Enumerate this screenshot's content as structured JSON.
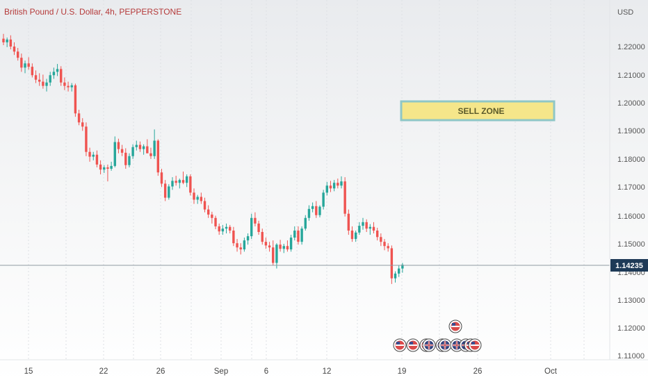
{
  "header": {
    "title": "British Pound / U.S. Dollar, 4h, PEPPERSTONE",
    "currency": "USD"
  },
  "price_axis": {
    "labels": [
      "1.22000",
      "1.21000",
      "1.20000",
      "1.19000",
      "1.18000",
      "1.17000",
      "1.16000",
      "1.15000",
      "1.14000",
      "1.13000",
      "1.12000",
      "1.11000"
    ],
    "current_price": "1.14235"
  },
  "time_axis": {
    "labels": [
      "15",
      "22",
      "26",
      "Sep",
      "6",
      "12",
      "19",
      "26",
      "Oct"
    ]
  },
  "annotations": {
    "sell_zone": "SELL ZONE"
  },
  "colors": {
    "up": "#26a69a",
    "down": "#ef5350",
    "title": "#b53a3a",
    "zone_fill": "#f5e68a",
    "zone_border": "#8fc7c6",
    "price_tag": "#1e3a57"
  },
  "events": {
    "icons": [
      "us-flag-icon",
      "us-flag-icon",
      "us-flag-icon",
      "uk-flag-icon",
      "uk-flag-icon",
      "uk-flag-icon",
      "us-flag-icon",
      "uk-flag-icon",
      "uk-flag-icon",
      "us-flag-icon",
      "us-flag-icon"
    ]
  },
  "chart_data": {
    "type": "candlestick",
    "symbol": "British Pound / U.S. Dollar",
    "interval": "4h",
    "exchange": "PEPPERSTONE",
    "ylim": [
      1.11,
      1.225
    ],
    "x_ticks": [
      "15",
      "22",
      "26",
      "Sep",
      "6",
      "12",
      "19",
      "26",
      "Oct"
    ],
    "current_price": 1.14235,
    "zones": [
      {
        "label": "SELL ZONE",
        "from": 1.1955,
        "to": 1.2005
      }
    ],
    "candles": [
      [
        1.2228,
        1.2245,
        1.2205,
        1.2215
      ],
      [
        1.2215,
        1.2232,
        1.2198,
        1.2225
      ],
      [
        1.2225,
        1.224,
        1.219,
        1.22
      ],
      [
        1.22,
        1.2215,
        1.217,
        1.2182
      ],
      [
        1.2182,
        1.2195,
        1.215,
        1.216
      ],
      [
        1.216,
        1.2175,
        1.211,
        1.2125
      ],
      [
        1.2125,
        1.215,
        1.2105,
        1.214
      ],
      [
        1.214,
        1.2162,
        1.2118,
        1.2128
      ],
      [
        1.2128,
        1.214,
        1.209,
        1.2098
      ],
      [
        1.2098,
        1.2115,
        1.207,
        1.2082
      ],
      [
        1.2082,
        1.2105,
        1.206,
        1.2075
      ],
      [
        1.2075,
        1.21,
        1.205,
        1.206
      ],
      [
        1.206,
        1.2085,
        1.204,
        1.2072
      ],
      [
        1.2072,
        1.211,
        1.206,
        1.2098
      ],
      [
        1.2098,
        1.2125,
        1.2085,
        1.211
      ],
      [
        1.211,
        1.2138,
        1.2095,
        1.212
      ],
      [
        1.212,
        1.213,
        1.206,
        1.2072
      ],
      [
        1.2072,
        1.209,
        1.2045,
        1.206
      ],
      [
        1.206,
        1.2075,
        1.204,
        1.2055
      ],
      [
        1.2055,
        1.207,
        1.204,
        1.2062
      ],
      [
        1.2062,
        1.2068,
        1.195,
        1.1962
      ],
      [
        1.1962,
        1.1975,
        1.192,
        1.193
      ],
      [
        1.193,
        1.1945,
        1.19,
        1.1915
      ],
      [
        1.1915,
        1.193,
        1.181,
        1.1825
      ],
      [
        1.1825,
        1.184,
        1.179,
        1.1808
      ],
      [
        1.1808,
        1.1825,
        1.1795,
        1.1815
      ],
      [
        1.1815,
        1.183,
        1.177,
        1.178
      ],
      [
        1.178,
        1.1795,
        1.1745,
        1.1762
      ],
      [
        1.1762,
        1.1778,
        1.175,
        1.177
      ],
      [
        1.177,
        1.178,
        1.172,
        1.1765
      ],
      [
        1.1765,
        1.179,
        1.1758,
        1.1775
      ],
      [
        1.1775,
        1.188,
        1.177,
        1.186
      ],
      [
        1.186,
        1.1872,
        1.182,
        1.1835
      ],
      [
        1.1835,
        1.185,
        1.181,
        1.1822
      ],
      [
        1.1822,
        1.1838,
        1.1765,
        1.1778
      ],
      [
        1.1778,
        1.182,
        1.177,
        1.181
      ],
      [
        1.181,
        1.1852,
        1.18,
        1.1842
      ],
      [
        1.1842,
        1.1865,
        1.183,
        1.185
      ],
      [
        1.185,
        1.1862,
        1.1825,
        1.1835
      ],
      [
        1.1835,
        1.1852,
        1.1815,
        1.1845
      ],
      [
        1.1845,
        1.187,
        1.183,
        1.182
      ],
      [
        1.182,
        1.184,
        1.18,
        1.181
      ],
      [
        1.181,
        1.1905,
        1.18,
        1.1865
      ],
      [
        1.1865,
        1.187,
        1.174,
        1.1752
      ],
      [
        1.1752,
        1.1765,
        1.17,
        1.1712
      ],
      [
        1.1712,
        1.1725,
        1.165,
        1.1662
      ],
      [
        1.1662,
        1.171,
        1.1655,
        1.1702
      ],
      [
        1.1702,
        1.1735,
        1.169,
        1.1722
      ],
      [
        1.1722,
        1.174,
        1.1705,
        1.1715
      ],
      [
        1.1715,
        1.173,
        1.1695,
        1.1725
      ],
      [
        1.1725,
        1.1755,
        1.171,
        1.1715
      ],
      [
        1.1715,
        1.1745,
        1.17,
        1.1738
      ],
      [
        1.1738,
        1.1745,
        1.167,
        1.168
      ],
      [
        1.168,
        1.1695,
        1.164,
        1.1655
      ],
      [
        1.1655,
        1.1672,
        1.164,
        1.1665
      ],
      [
        1.1665,
        1.168,
        1.164,
        1.165
      ],
      [
        1.165,
        1.1662,
        1.161,
        1.162
      ],
      [
        1.162,
        1.1635,
        1.159,
        1.1602
      ],
      [
        1.1602,
        1.1612,
        1.157,
        1.159
      ],
      [
        1.159,
        1.1598,
        1.155,
        1.156
      ],
      [
        1.156,
        1.157,
        1.153,
        1.1542
      ],
      [
        1.1542,
        1.1565,
        1.153,
        1.1552
      ],
      [
        1.1552,
        1.157,
        1.1535,
        1.1558
      ],
      [
        1.1558,
        1.1565,
        1.1535,
        1.1545
      ],
      [
        1.1545,
        1.1558,
        1.149,
        1.15
      ],
      [
        1.15,
        1.1515,
        1.147,
        1.1485
      ],
      [
        1.1485,
        1.15,
        1.146,
        1.1478
      ],
      [
        1.1478,
        1.152,
        1.147,
        1.151
      ],
      [
        1.151,
        1.1535,
        1.1495,
        1.1525
      ],
      [
        1.1525,
        1.1605,
        1.1515,
        1.159
      ],
      [
        1.159,
        1.161,
        1.156,
        1.157
      ],
      [
        1.157,
        1.158,
        1.153,
        1.154
      ],
      [
        1.154,
        1.1552,
        1.1495,
        1.1505
      ],
      [
        1.1505,
        1.152,
        1.148,
        1.1492
      ],
      [
        1.1492,
        1.1505,
        1.147,
        1.1485
      ],
      [
        1.1485,
        1.151,
        1.142,
        1.143
      ],
      [
        1.143,
        1.15,
        1.141,
        1.1495
      ],
      [
        1.1495,
        1.1512,
        1.147,
        1.148
      ],
      [
        1.148,
        1.1498,
        1.1465,
        1.149
      ],
      [
        1.149,
        1.151,
        1.147,
        1.1478
      ],
      [
        1.1478,
        1.153,
        1.147,
        1.152
      ],
      [
        1.152,
        1.156,
        1.151,
        1.1545
      ],
      [
        1.1545,
        1.156,
        1.1495,
        1.1505
      ],
      [
        1.1505,
        1.156,
        1.1495,
        1.1552
      ],
      [
        1.1552,
        1.16,
        1.1545,
        1.159
      ],
      [
        1.159,
        1.1635,
        1.158,
        1.1622
      ],
      [
        1.1622,
        1.1645,
        1.161,
        1.1632
      ],
      [
        1.1632,
        1.165,
        1.159,
        1.16
      ],
      [
        1.16,
        1.1635,
        1.1592,
        1.163
      ],
      [
        1.163,
        1.169,
        1.162,
        1.168
      ],
      [
        1.168,
        1.1718,
        1.167,
        1.1705
      ],
      [
        1.1705,
        1.1722,
        1.1682,
        1.1695
      ],
      [
        1.1695,
        1.1725,
        1.1685,
        1.1715
      ],
      [
        1.1715,
        1.173,
        1.1695,
        1.1705
      ],
      [
        1.1705,
        1.1738,
        1.1695,
        1.172
      ],
      [
        1.172,
        1.1735,
        1.1595,
        1.1605
      ],
      [
        1.1605,
        1.162,
        1.153,
        1.1545
      ],
      [
        1.1545,
        1.156,
        1.1505,
        1.1515
      ],
      [
        1.1515,
        1.1545,
        1.1505,
        1.1538
      ],
      [
        1.1538,
        1.1575,
        1.153,
        1.1562
      ],
      [
        1.1562,
        1.159,
        1.1548,
        1.1575
      ],
      [
        1.1575,
        1.1585,
        1.154,
        1.1552
      ],
      [
        1.1552,
        1.1568,
        1.153,
        1.1558
      ],
      [
        1.1558,
        1.1575,
        1.1535,
        1.1545
      ],
      [
        1.1545,
        1.1555,
        1.151,
        1.1522
      ],
      [
        1.1522,
        1.1535,
        1.149,
        1.1505
      ],
      [
        1.1505,
        1.1515,
        1.1475,
        1.149
      ],
      [
        1.149,
        1.15,
        1.147,
        1.1482
      ],
      [
        1.1482,
        1.1492,
        1.1355,
        1.1375
      ],
      [
        1.1375,
        1.14,
        1.136,
        1.1392
      ],
      [
        1.1392,
        1.142,
        1.138,
        1.141
      ],
      [
        1.141,
        1.143,
        1.1395,
        1.14235
      ]
    ]
  }
}
